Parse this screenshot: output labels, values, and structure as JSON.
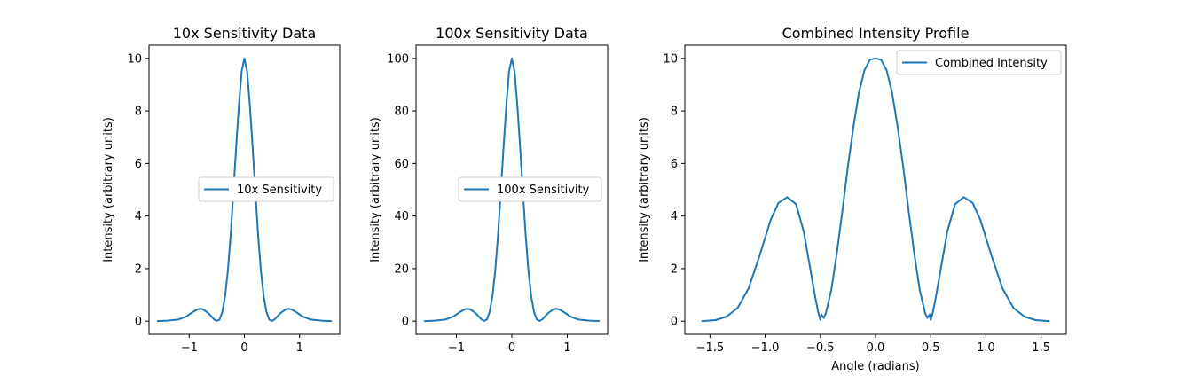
{
  "colors": {
    "series": "#1f77b4"
  },
  "chart_data": [
    {
      "type": "line",
      "title": "10x Sensitivity Data",
      "xlabel": "",
      "ylabel": "Intensity (arbitrary units)",
      "xlim": [
        -1.7279,
        1.7279
      ],
      "ylim": [
        -0.5,
        10.5
      ],
      "xticks": [
        -1,
        0,
        1
      ],
      "xtick_labels": [
        "−1",
        "0",
        "1"
      ],
      "yticks": [
        0,
        2,
        4,
        6,
        8,
        10
      ],
      "ytick_labels": [
        "0",
        "2",
        "4",
        "6",
        "8",
        "10"
      ],
      "legend": "center-right",
      "grid": false,
      "series": [
        {
          "name": "10x Sensitivity",
          "x": [
            -1.57,
            -1.4,
            -1.2,
            -1.05,
            -0.95,
            -0.85,
            -0.8,
            -0.75,
            -0.65,
            -0.55,
            -0.5,
            -0.45,
            -0.4,
            -0.35,
            -0.3,
            -0.25,
            -0.2,
            -0.15,
            -0.1,
            -0.05,
            0,
            0.05,
            0.1,
            0.15,
            0.2,
            0.25,
            0.3,
            0.35,
            0.4,
            0.45,
            0.5,
            0.55,
            0.65,
            0.75,
            0.8,
            0.85,
            0.95,
            1.05,
            1.2,
            1.4,
            1.57
          ],
          "y": [
            0.0,
            0.02,
            0.06,
            0.18,
            0.33,
            0.45,
            0.47,
            0.45,
            0.3,
            0.07,
            0.01,
            0.06,
            0.35,
            0.95,
            1.9,
            3.25,
            4.9,
            6.6,
            8.2,
            9.5,
            10.0,
            9.5,
            8.2,
            6.6,
            4.9,
            3.25,
            1.9,
            0.95,
            0.35,
            0.06,
            0.01,
            0.07,
            0.3,
            0.45,
            0.47,
            0.45,
            0.33,
            0.18,
            0.06,
            0.02,
            0.0
          ]
        }
      ]
    },
    {
      "type": "line",
      "title": "100x Sensitivity Data",
      "xlabel": "",
      "ylabel": "Intensity (arbitrary units)",
      "xlim": [
        -1.7279,
        1.7279
      ],
      "ylim": [
        -5,
        105
      ],
      "xticks": [
        -1,
        0,
        1
      ],
      "xtick_labels": [
        "−1",
        "0",
        "1"
      ],
      "yticks": [
        0,
        20,
        40,
        60,
        80,
        100
      ],
      "ytick_labels": [
        "0",
        "20",
        "40",
        "60",
        "80",
        "100"
      ],
      "legend": "center-right",
      "grid": false,
      "series": [
        {
          "name": "100x Sensitivity",
          "x": [
            -1.57,
            -1.4,
            -1.2,
            -1.05,
            -0.95,
            -0.85,
            -0.8,
            -0.75,
            -0.65,
            -0.55,
            -0.5,
            -0.45,
            -0.4,
            -0.35,
            -0.3,
            -0.25,
            -0.2,
            -0.15,
            -0.1,
            -0.05,
            0,
            0.05,
            0.1,
            0.15,
            0.2,
            0.25,
            0.3,
            0.35,
            0.4,
            0.45,
            0.5,
            0.55,
            0.65,
            0.75,
            0.8,
            0.85,
            0.95,
            1.05,
            1.2,
            1.4,
            1.57
          ],
          "y": [
            0.0,
            0.2,
            0.6,
            1.8,
            3.3,
            4.5,
            4.7,
            4.5,
            3.0,
            0.7,
            0.1,
            0.6,
            3.5,
            9.5,
            19,
            32.5,
            49,
            66,
            82,
            95,
            100,
            95,
            82,
            66,
            49,
            32.5,
            19,
            9.5,
            3.5,
            0.6,
            0.1,
            0.7,
            3.0,
            4.5,
            4.7,
            4.5,
            3.3,
            1.8,
            0.6,
            0.2,
            0.0
          ]
        }
      ]
    },
    {
      "type": "line",
      "title": "Combined Intensity Profile",
      "xlabel": "Angle (radians)",
      "ylabel": "Intensity (arbitrary units)",
      "xlim": [
        -1.7279,
        1.7279
      ],
      "ylim": [
        -0.5,
        10.5
      ],
      "xticks": [
        -1.5,
        -1.0,
        -0.5,
        0.0,
        0.5,
        1.0,
        1.5
      ],
      "xtick_labels": [
        "−1.5",
        "−1.0",
        "−0.5",
        "0.0",
        "0.5",
        "1.0",
        "1.5"
      ],
      "yticks": [
        0,
        2,
        4,
        6,
        8,
        10
      ],
      "ytick_labels": [
        "0",
        "2",
        "4",
        "6",
        "8",
        "10"
      ],
      "legend": "top-right",
      "grid": false,
      "series": [
        {
          "name": "Combined Intensity",
          "x": [
            -1.57,
            -1.45,
            -1.35,
            -1.25,
            -1.15,
            -1.05,
            -0.95,
            -0.88,
            -0.8,
            -0.72,
            -0.65,
            -0.6,
            -0.55,
            -0.52,
            -0.5,
            -0.49,
            -0.47,
            -0.45,
            -0.4,
            -0.35,
            -0.3,
            -0.25,
            -0.2,
            -0.15,
            -0.1,
            -0.05,
            0,
            0.05,
            0.1,
            0.15,
            0.2,
            0.25,
            0.3,
            0.35,
            0.4,
            0.45,
            0.47,
            0.49,
            0.5,
            0.52,
            0.55,
            0.6,
            0.65,
            0.72,
            0.8,
            0.88,
            0.95,
            1.05,
            1.15,
            1.25,
            1.35,
            1.45,
            1.57
          ],
          "y": [
            0.0,
            0.04,
            0.17,
            0.5,
            1.25,
            2.5,
            3.85,
            4.5,
            4.72,
            4.45,
            3.4,
            2.2,
            1.0,
            0.35,
            0.05,
            0.25,
            0.12,
            0.3,
            1.2,
            2.6,
            4.2,
            5.9,
            7.4,
            8.7,
            9.55,
            9.95,
            10.0,
            9.95,
            9.55,
            8.7,
            7.4,
            5.9,
            4.2,
            2.6,
            1.2,
            0.3,
            0.12,
            0.25,
            0.05,
            0.35,
            1.0,
            2.2,
            3.4,
            4.45,
            4.72,
            4.5,
            3.85,
            2.5,
            1.25,
            0.5,
            0.17,
            0.04,
            0.0
          ]
        }
      ]
    }
  ]
}
